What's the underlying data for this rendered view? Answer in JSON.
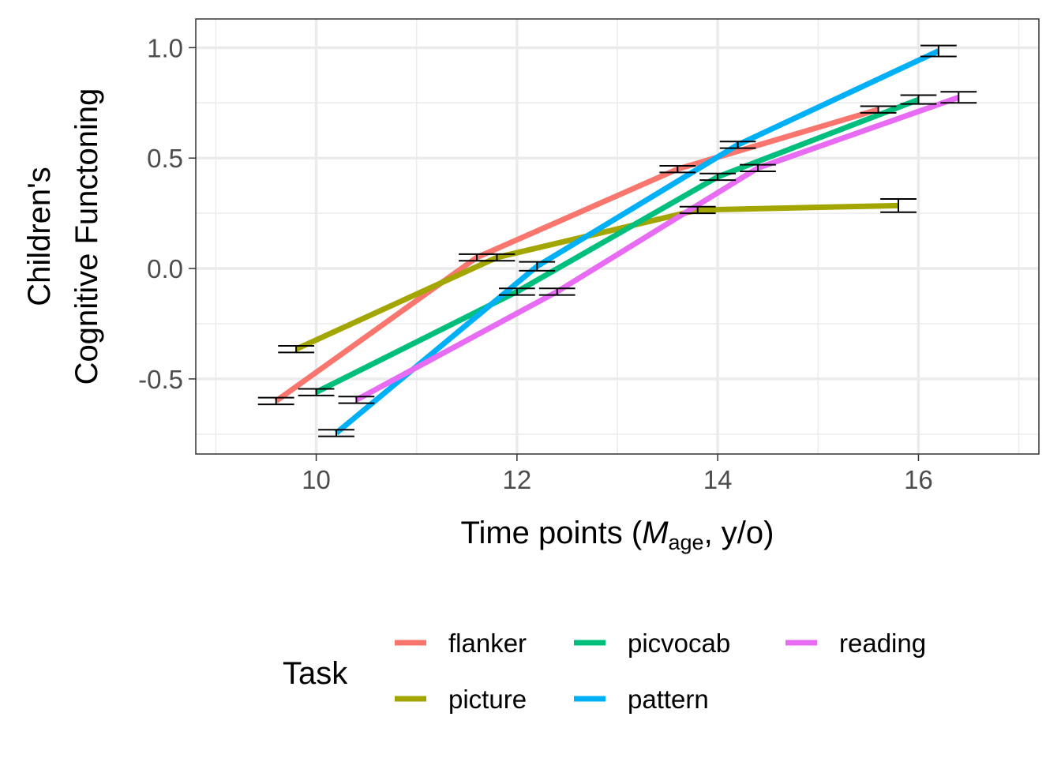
{
  "chart_data": {
    "type": "line",
    "title": "",
    "ylabel_lines": [
      "Children's",
      "Cognitive Functoning"
    ],
    "xlabel": {
      "prefix": "Time points (",
      "italic": "M",
      "subscript": "age",
      "suffix": ", y/o)"
    },
    "xlim": [
      8.8,
      17.2
    ],
    "ylim": [
      -0.84,
      1.13
    ],
    "x_ticks": [
      10,
      12,
      14,
      16
    ],
    "x_tick_labels": [
      "10",
      "12",
      "14",
      "16"
    ],
    "y_ticks": [
      -0.5,
      0.0,
      0.5,
      1.0
    ],
    "y_tick_labels": [
      "-0.5",
      "0.0",
      "0.5",
      "1.0"
    ],
    "y_minor_ticks": [
      -0.75,
      -0.25,
      0.25,
      0.75
    ],
    "grid": true,
    "error_bar_half_width_x": 0.18,
    "legend": {
      "title": "Task",
      "position": "bottom",
      "entries": [
        "flanker",
        "picture",
        "picvocab",
        "pattern",
        "reading"
      ]
    },
    "series": [
      {
        "name": "flanker",
        "color": "#F8766D",
        "points": [
          {
            "x": 9.6,
            "y": -0.6,
            "lo": -0.615,
            "hi": -0.585
          },
          {
            "x": 11.6,
            "y": 0.05,
            "lo": 0.035,
            "hi": 0.065
          },
          {
            "x": 13.6,
            "y": 0.45,
            "lo": 0.435,
            "hi": 0.465
          },
          {
            "x": 15.6,
            "y": 0.72,
            "lo": 0.705,
            "hi": 0.735
          }
        ]
      },
      {
        "name": "picture",
        "color": "#A3A500",
        "points": [
          {
            "x": 9.8,
            "y": -0.365,
            "lo": -0.38,
            "hi": -0.35
          },
          {
            "x": 11.8,
            "y": 0.05,
            "lo": 0.035,
            "hi": 0.065
          },
          {
            "x": 13.8,
            "y": 0.265,
            "lo": 0.25,
            "hi": 0.28
          },
          {
            "x": 15.8,
            "y": 0.285,
            "lo": 0.255,
            "hi": 0.315
          }
        ]
      },
      {
        "name": "picvocab",
        "color": "#00BF7D",
        "points": [
          {
            "x": 10.0,
            "y": -0.56,
            "lo": -0.575,
            "hi": -0.545
          },
          {
            "x": 12.0,
            "y": -0.105,
            "lo": -0.12,
            "hi": -0.09
          },
          {
            "x": 14.0,
            "y": 0.415,
            "lo": 0.4,
            "hi": 0.43
          },
          {
            "x": 16.0,
            "y": 0.765,
            "lo": 0.745,
            "hi": 0.785
          }
        ]
      },
      {
        "name": "pattern",
        "color": "#00B0F6",
        "points": [
          {
            "x": 10.2,
            "y": -0.745,
            "lo": -0.76,
            "hi": -0.73
          },
          {
            "x": 12.2,
            "y": 0.01,
            "lo": -0.01,
            "hi": 0.03
          },
          {
            "x": 14.2,
            "y": 0.56,
            "lo": 0.545,
            "hi": 0.575
          },
          {
            "x": 16.2,
            "y": 0.985,
            "lo": 0.96,
            "hi": 1.01
          }
        ]
      },
      {
        "name": "reading",
        "color": "#E76BF3",
        "points": [
          {
            "x": 10.4,
            "y": -0.595,
            "lo": -0.61,
            "hi": -0.58
          },
          {
            "x": 12.4,
            "y": -0.105,
            "lo": -0.12,
            "hi": -0.09
          },
          {
            "x": 14.4,
            "y": 0.455,
            "lo": 0.44,
            "hi": 0.47
          },
          {
            "x": 16.4,
            "y": 0.775,
            "lo": 0.75,
            "hi": 0.8
          }
        ]
      }
    ]
  }
}
